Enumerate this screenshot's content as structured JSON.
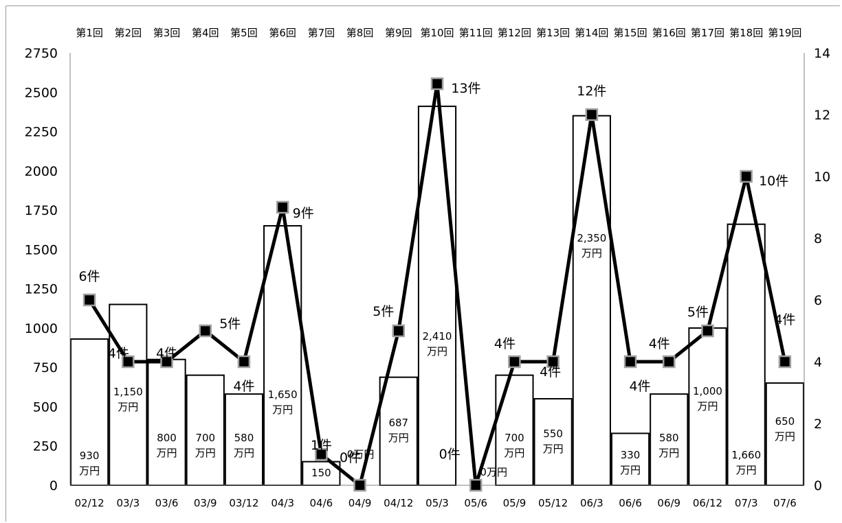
{
  "chart_data": {
    "type": "bar+line",
    "rounds": [
      "第1回",
      "第2回",
      "第3回",
      "第4回",
      "第5回",
      "第6回",
      "第7回",
      "第8回",
      "第9回",
      "第10回",
      "第11回",
      "第12回",
      "第13回",
      "第14回",
      "第15回",
      "第16回",
      "第17回",
      "第18回",
      "第19回"
    ],
    "categories": [
      "02/12",
      "03/3",
      "03/6",
      "03/9",
      "03/12",
      "04/3",
      "04/6",
      "04/9",
      "04/12",
      "05/3",
      "05/6",
      "05/9",
      "05/12",
      "06/3",
      "06/6",
      "06/9",
      "06/12",
      "07/3",
      "07/6"
    ],
    "series": [
      {
        "type": "bar",
        "axis": "left",
        "values": [
          930,
          1150,
          800,
          700,
          580,
          1650,
          150,
          0,
          687,
          2410,
          0,
          700,
          550,
          2350,
          330,
          580,
          1000,
          1660,
          650
        ],
        "labels": [
          "930",
          "1,150",
          "800",
          "700",
          "580",
          "1,650",
          "150",
          "0",
          "687",
          "2,410",
          "0",
          "700",
          "550",
          "2,350",
          "330",
          "580",
          "1,000",
          "1,660",
          "650"
        ],
        "unit_labels": [
          "万円",
          "万円",
          "万円",
          "万円",
          "万円",
          "万円",
          "",
          "万円",
          "万円",
          "万円",
          "万円",
          "万円",
          "万円",
          "万円",
          "万円",
          "万円",
          "万円",
          "万円",
          "万円"
        ]
      },
      {
        "type": "line",
        "axis": "right",
        "values": [
          6,
          4,
          4,
          5,
          4,
          9,
          1,
          0,
          5,
          13,
          0,
          4,
          4,
          12,
          4,
          4,
          5,
          10,
          4
        ],
        "labels": [
          "6件",
          "4件",
          "4件",
          "5件",
          "4件",
          "9件",
          "1件",
          "0件",
          "5件",
          "13件",
          "0件",
          "4件",
          "4件",
          "12件",
          "4件",
          "4件",
          "5件",
          "10件",
          "4件"
        ]
      }
    ],
    "left_axis": {
      "ylim": [
        0,
        2750
      ],
      "ticks": [
        "0",
        "250",
        "500",
        "750",
        "1000",
        "1250",
        "1500",
        "1750",
        "2000",
        "2250",
        "2500",
        "2750"
      ]
    },
    "right_axis": {
      "ylim": [
        0,
        14
      ],
      "ticks": [
        "0",
        "2",
        "4",
        "6",
        "8",
        "10",
        "12",
        "14"
      ]
    },
    "colors": {
      "bar_fill": "#ffffff",
      "bar_stroke": "#000000",
      "line": "#000000",
      "marker_fill": "#000000",
      "marker_stroke": "#a0a0a0"
    }
  }
}
